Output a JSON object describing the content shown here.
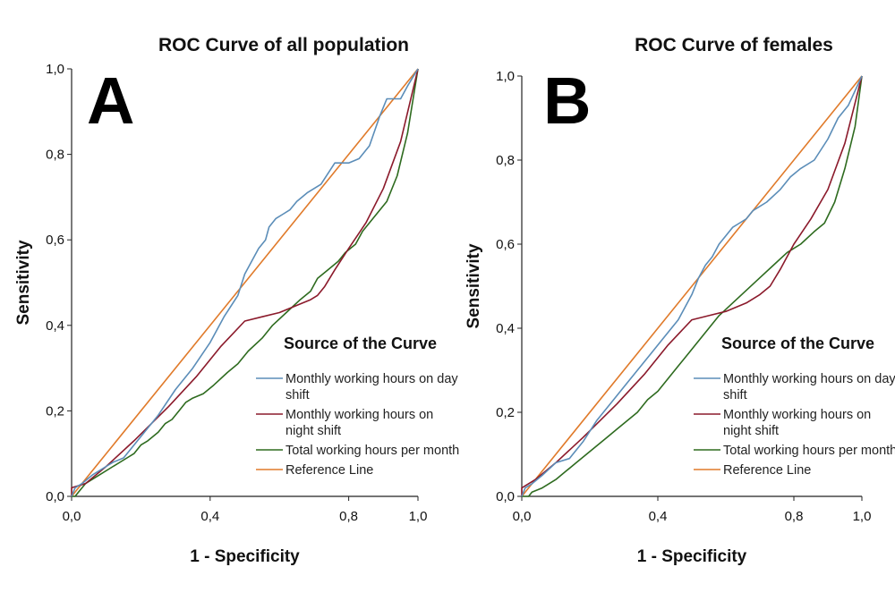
{
  "chart_data": [
    {
      "panel": "A",
      "type": "line",
      "title": "ROC Curve of all population",
      "xlabel": "1 - Specificity",
      "ylabel": "Sensitivity",
      "xlim": [
        0,
        1
      ],
      "ylim": [
        0,
        1
      ],
      "x_ticks": [
        "0,0",
        "0,4",
        "0,8",
        "1,0"
      ],
      "y_ticks": [
        "0,0",
        "0,2",
        "0,4",
        "0,6",
        "0,8",
        "1,0"
      ],
      "legend_title": "Source of the Curve",
      "series": [
        {
          "name": "Monthly working hours on day shift",
          "color": "#5b8db8",
          "points": [
            [
              0,
              0
            ],
            [
              0.01,
              0.02
            ],
            [
              0.03,
              0.03
            ],
            [
              0.06,
              0.05
            ],
            [
              0.1,
              0.07
            ],
            [
              0.12,
              0.08
            ],
            [
              0.15,
              0.09
            ],
            [
              0.2,
              0.14
            ],
            [
              0.25,
              0.19
            ],
            [
              0.3,
              0.25
            ],
            [
              0.35,
              0.3
            ],
            [
              0.4,
              0.36
            ],
            [
              0.44,
              0.42
            ],
            [
              0.48,
              0.47
            ],
            [
              0.5,
              0.52
            ],
            [
              0.52,
              0.55
            ],
            [
              0.54,
              0.58
            ],
            [
              0.56,
              0.6
            ],
            [
              0.57,
              0.63
            ],
            [
              0.59,
              0.65
            ],
            [
              0.61,
              0.66
            ],
            [
              0.63,
              0.67
            ],
            [
              0.65,
              0.69
            ],
            [
              0.68,
              0.71
            ],
            [
              0.72,
              0.73
            ],
            [
              0.76,
              0.78
            ],
            [
              0.8,
              0.78
            ],
            [
              0.83,
              0.79
            ],
            [
              0.86,
              0.82
            ],
            [
              0.89,
              0.89
            ],
            [
              0.91,
              0.93
            ],
            [
              0.95,
              0.93
            ],
            [
              0.97,
              0.96
            ],
            [
              1,
              1
            ]
          ]
        },
        {
          "name": "Monthly working hours on night shift",
          "color": "#8b1a2b",
          "points": [
            [
              0,
              0
            ],
            [
              0,
              0.02
            ],
            [
              0.04,
              0.03
            ],
            [
              0.1,
              0.07
            ],
            [
              0.18,
              0.13
            ],
            [
              0.28,
              0.21
            ],
            [
              0.36,
              0.28
            ],
            [
              0.43,
              0.35
            ],
            [
              0.5,
              0.41
            ],
            [
              0.55,
              0.42
            ],
            [
              0.6,
              0.43
            ],
            [
              0.66,
              0.45
            ],
            [
              0.69,
              0.46
            ],
            [
              0.71,
              0.47
            ],
            [
              0.73,
              0.49
            ],
            [
              0.76,
              0.53
            ],
            [
              0.8,
              0.58
            ],
            [
              0.85,
              0.64
            ],
            [
              0.9,
              0.72
            ],
            [
              0.95,
              0.83
            ],
            [
              1,
              1
            ]
          ]
        },
        {
          "name": "Total working hours per month",
          "color": "#2e6b1f",
          "points": [
            [
              0,
              0
            ],
            [
              0.01,
              0
            ],
            [
              0.02,
              0.01
            ],
            [
              0.04,
              0.03
            ],
            [
              0.08,
              0.05
            ],
            [
              0.12,
              0.07
            ],
            [
              0.16,
              0.09
            ],
            [
              0.18,
              0.1
            ],
            [
              0.2,
              0.12
            ],
            [
              0.22,
              0.13
            ],
            [
              0.25,
              0.15
            ],
            [
              0.27,
              0.17
            ],
            [
              0.29,
              0.18
            ],
            [
              0.31,
              0.2
            ],
            [
              0.33,
              0.22
            ],
            [
              0.35,
              0.23
            ],
            [
              0.38,
              0.24
            ],
            [
              0.41,
              0.26
            ],
            [
              0.45,
              0.29
            ],
            [
              0.48,
              0.31
            ],
            [
              0.51,
              0.34
            ],
            [
              0.55,
              0.37
            ],
            [
              0.58,
              0.4
            ],
            [
              0.62,
              0.43
            ],
            [
              0.66,
              0.46
            ],
            [
              0.69,
              0.48
            ],
            [
              0.71,
              0.51
            ],
            [
              0.74,
              0.53
            ],
            [
              0.77,
              0.55
            ],
            [
              0.79,
              0.57
            ],
            [
              0.82,
              0.59
            ],
            [
              0.84,
              0.62
            ],
            [
              0.86,
              0.64
            ],
            [
              0.88,
              0.66
            ],
            [
              0.91,
              0.69
            ],
            [
              0.94,
              0.75
            ],
            [
              0.97,
              0.85
            ],
            [
              1,
              1
            ]
          ]
        },
        {
          "name": "Reference Line",
          "color": "#e07a2a",
          "points": [
            [
              0,
              0
            ],
            [
              1,
              1
            ]
          ]
        }
      ]
    },
    {
      "panel": "B",
      "type": "line",
      "title": "ROC Curve of females",
      "xlabel": "1 - Specificity",
      "ylabel": "Sensitivity",
      "xlim": [
        0,
        1
      ],
      "ylim": [
        0,
        1
      ],
      "x_ticks": [
        "0,0",
        "0,4",
        "0,8",
        "1,0"
      ],
      "y_ticks": [
        "0,0",
        "0,2",
        "0,4",
        "0,6",
        "0,8",
        "1,0"
      ],
      "legend_title": "Source of the Curve",
      "series": [
        {
          "name": "Monthly working hours on day shift",
          "color": "#5b8db8",
          "points": [
            [
              0,
              0
            ],
            [
              0.01,
              0.02
            ],
            [
              0.03,
              0.03
            ],
            [
              0.06,
              0.05
            ],
            [
              0.1,
              0.08
            ],
            [
              0.14,
              0.09
            ],
            [
              0.18,
              0.13
            ],
            [
              0.22,
              0.18
            ],
            [
              0.26,
              0.22
            ],
            [
              0.3,
              0.26
            ],
            [
              0.34,
              0.3
            ],
            [
              0.38,
              0.34
            ],
            [
              0.42,
              0.38
            ],
            [
              0.46,
              0.42
            ],
            [
              0.5,
              0.48
            ],
            [
              0.52,
              0.52
            ],
            [
              0.54,
              0.55
            ],
            [
              0.56,
              0.57
            ],
            [
              0.58,
              0.6
            ],
            [
              0.6,
              0.62
            ],
            [
              0.62,
              0.64
            ],
            [
              0.64,
              0.65
            ],
            [
              0.66,
              0.66
            ],
            [
              0.68,
              0.68
            ],
            [
              0.72,
              0.7
            ],
            [
              0.76,
              0.73
            ],
            [
              0.79,
              0.76
            ],
            [
              0.82,
              0.78
            ],
            [
              0.86,
              0.8
            ],
            [
              0.9,
              0.85
            ],
            [
              0.93,
              0.9
            ],
            [
              0.96,
              0.93
            ],
            [
              1,
              1
            ]
          ]
        },
        {
          "name": "Monthly working hours on night shift",
          "color": "#8b1a2b",
          "points": [
            [
              0,
              0
            ],
            [
              0,
              0.02
            ],
            [
              0.04,
              0.04
            ],
            [
              0.1,
              0.08
            ],
            [
              0.18,
              0.14
            ],
            [
              0.28,
              0.22
            ],
            [
              0.36,
              0.29
            ],
            [
              0.43,
              0.36
            ],
            [
              0.5,
              0.42
            ],
            [
              0.55,
              0.43
            ],
            [
              0.6,
              0.44
            ],
            [
              0.66,
              0.46
            ],
            [
              0.7,
              0.48
            ],
            [
              0.73,
              0.5
            ],
            [
              0.76,
              0.54
            ],
            [
              0.8,
              0.6
            ],
            [
              0.85,
              0.66
            ],
            [
              0.9,
              0.73
            ],
            [
              0.95,
              0.84
            ],
            [
              1,
              1
            ]
          ]
        },
        {
          "name": "Total working hours per month",
          "color": "#2e6b1f",
          "points": [
            [
              0,
              0
            ],
            [
              0.02,
              0
            ],
            [
              0.03,
              0.01
            ],
            [
              0.06,
              0.02
            ],
            [
              0.1,
              0.04
            ],
            [
              0.13,
              0.06
            ],
            [
              0.16,
              0.08
            ],
            [
              0.19,
              0.1
            ],
            [
              0.22,
              0.12
            ],
            [
              0.25,
              0.14
            ],
            [
              0.28,
              0.16
            ],
            [
              0.31,
              0.18
            ],
            [
              0.34,
              0.2
            ],
            [
              0.37,
              0.23
            ],
            [
              0.4,
              0.25
            ],
            [
              0.43,
              0.28
            ],
            [
              0.46,
              0.31
            ],
            [
              0.49,
              0.34
            ],
            [
              0.52,
              0.37
            ],
            [
              0.55,
              0.4
            ],
            [
              0.58,
              0.43
            ],
            [
              0.62,
              0.46
            ],
            [
              0.66,
              0.49
            ],
            [
              0.7,
              0.52
            ],
            [
              0.74,
              0.55
            ],
            [
              0.78,
              0.58
            ],
            [
              0.82,
              0.6
            ],
            [
              0.86,
              0.63
            ],
            [
              0.89,
              0.65
            ],
            [
              0.92,
              0.7
            ],
            [
              0.95,
              0.78
            ],
            [
              0.98,
              0.88
            ],
            [
              1,
              1
            ]
          ]
        },
        {
          "name": "Reference Line",
          "color": "#e07a2a",
          "points": [
            [
              0,
              0
            ],
            [
              1,
              1
            ]
          ]
        }
      ]
    }
  ],
  "legend_labels": {
    "day_line1": "Monthly working hours on day",
    "day_line2": "shift",
    "night_line1": "Monthly working hours on",
    "night_line2": "night shift",
    "total": "Total working hours per month",
    "reference": "Reference Line"
  }
}
